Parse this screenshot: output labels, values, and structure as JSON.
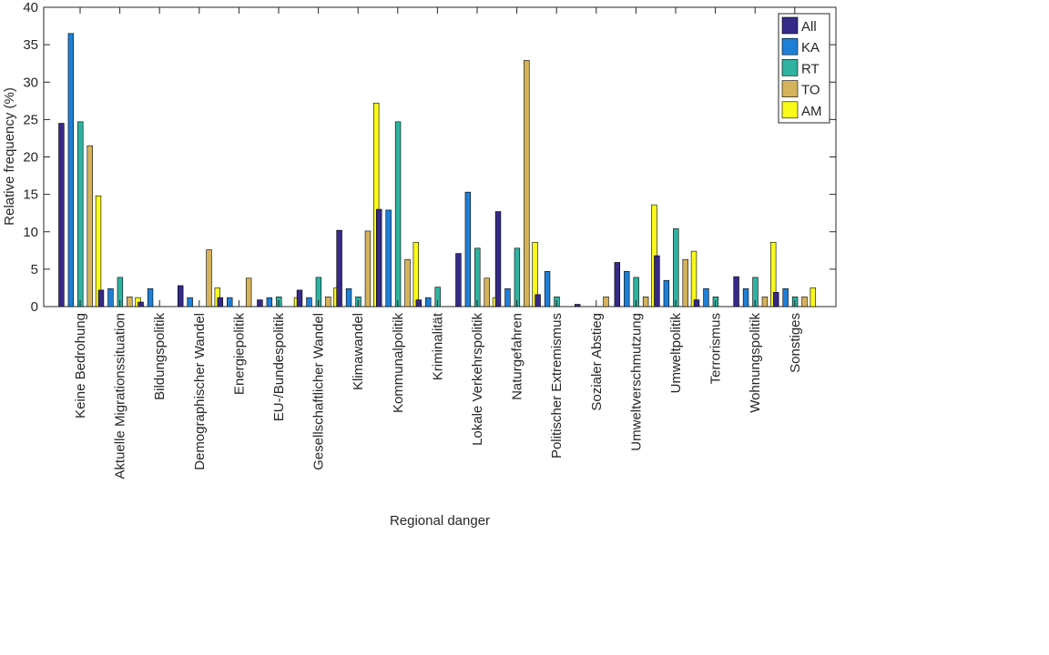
{
  "chart_data": {
    "type": "bar",
    "title": "",
    "xlabel": "Regional danger",
    "ylabel": "Relative frequency (%)",
    "ylim": [
      0,
      40
    ],
    "yticks": [
      0,
      5,
      10,
      15,
      20,
      25,
      30,
      35,
      40
    ],
    "grid": false,
    "legend_position": "top-right",
    "categories": [
      "Keine Bedrohung",
      "Aktuelle Migrationssituation",
      "Bildungspolitik",
      "Demographischer Wandel",
      "Energiepolitik",
      "EU-/Bundespolitik",
      "Gesellschaftlicher Wandel",
      "Klimawandel",
      "Kommunalpolitik",
      "Kriminalität",
      "Lokale Verkehrspolitik",
      "Naturgefahren",
      "Politischer Extremismus",
      "Sozialer Abstieg",
      "Umweltverschmutzung",
      "Umweltpolitik",
      "Terrorismus",
      "Wohnungspolitik",
      "Sonstiges"
    ],
    "series": [
      {
        "name": "All",
        "color": "#352a87",
        "values": [
          24.5,
          2.2,
          0.6,
          2.8,
          1.2,
          0.9,
          2.2,
          10.2,
          13.0,
          0.9,
          7.1,
          12.7,
          1.6,
          0.3,
          5.9,
          6.8,
          0.9,
          4.0,
          1.9
        ]
      },
      {
        "name": "KA",
        "color": "#1e7fd6",
        "values": [
          36.5,
          2.4,
          2.4,
          1.2,
          1.2,
          1.2,
          1.2,
          2.4,
          12.9,
          1.2,
          15.3,
          2.4,
          4.7,
          0.0,
          4.7,
          3.5,
          2.4,
          2.4,
          2.4
        ]
      },
      {
        "name": "RT",
        "color": "#2fb2a0",
        "values": [
          24.7,
          3.9,
          0.0,
          0.0,
          0.0,
          1.3,
          3.9,
          1.3,
          24.7,
          2.6,
          7.8,
          7.8,
          1.3,
          0.0,
          3.9,
          10.4,
          1.3,
          3.9,
          1.3
        ]
      },
      {
        "name": "TO",
        "color": "#d4b35c",
        "values": [
          21.5,
          1.3,
          0.0,
          7.6,
          3.8,
          0.0,
          1.3,
          10.1,
          6.3,
          0.0,
          3.8,
          32.9,
          0.0,
          1.3,
          1.3,
          6.3,
          0.0,
          1.3,
          1.3
        ]
      },
      {
        "name": "AM",
        "color": "#f9f91a",
        "values": [
          14.8,
          1.2,
          0.0,
          2.5,
          0.0,
          1.2,
          2.5,
          27.2,
          8.6,
          0.0,
          1.2,
          8.6,
          0.0,
          0.0,
          13.6,
          7.4,
          0.0,
          8.6,
          2.5
        ]
      }
    ]
  }
}
